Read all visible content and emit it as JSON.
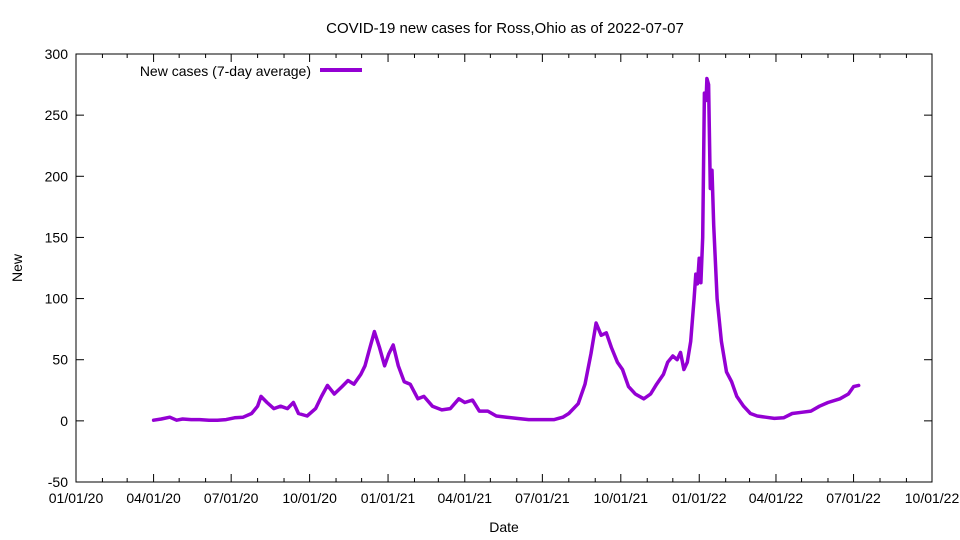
{
  "chart_data": {
    "type": "line",
    "title": "COVID-19 new cases for Ross,Ohio as of 2022-07-07",
    "xlabel": "Date",
    "ylabel": "New",
    "xlim": [
      "2020-01-01",
      "2022-10-01"
    ],
    "ylim": [
      -50,
      300
    ],
    "x_ticks": [
      "01/01/20",
      "04/01/20",
      "07/01/20",
      "10/01/20",
      "01/01/21",
      "04/01/21",
      "07/01/21",
      "10/01/21",
      "01/01/22",
      "04/01/22",
      "07/01/22",
      "10/01/22"
    ],
    "x_tick_dates": [
      "2020-01-01",
      "2020-04-01",
      "2020-07-01",
      "2020-10-01",
      "2021-01-01",
      "2021-04-01",
      "2021-07-01",
      "2021-10-01",
      "2022-01-01",
      "2022-04-01",
      "2022-07-01",
      "2022-10-01"
    ],
    "y_ticks": [
      "-50",
      "0",
      "50",
      "100",
      "150",
      "200",
      "250",
      "300"
    ],
    "y_tick_values": [
      -50,
      0,
      50,
      100,
      150,
      200,
      250,
      300
    ],
    "grid": false,
    "legend_position": "top-left",
    "series": [
      {
        "name": "New cases (7-day average)",
        "color": "#9400d3",
        "points": [
          [
            "2020-04-01",
            0.5
          ],
          [
            "2020-04-10",
            1.5
          ],
          [
            "2020-04-20",
            3
          ],
          [
            "2020-04-28",
            0.5
          ],
          [
            "2020-05-05",
            1.5
          ],
          [
            "2020-05-15",
            1
          ],
          [
            "2020-05-25",
            1
          ],
          [
            "2020-06-05",
            0.5
          ],
          [
            "2020-06-15",
            0.5
          ],
          [
            "2020-06-25",
            1
          ],
          [
            "2020-07-05",
            2.5
          ],
          [
            "2020-07-15",
            3
          ],
          [
            "2020-07-25",
            6
          ],
          [
            "2020-08-01",
            12
          ],
          [
            "2020-08-05",
            20
          ],
          [
            "2020-08-12",
            15
          ],
          [
            "2020-08-20",
            10
          ],
          [
            "2020-08-28",
            12
          ],
          [
            "2020-09-05",
            10
          ],
          [
            "2020-09-12",
            15
          ],
          [
            "2020-09-18",
            6
          ],
          [
            "2020-09-28",
            4
          ],
          [
            "2020-10-08",
            10
          ],
          [
            "2020-10-15",
            20
          ],
          [
            "2020-10-22",
            29
          ],
          [
            "2020-10-30",
            22
          ],
          [
            "2020-11-08",
            28
          ],
          [
            "2020-11-15",
            33
          ],
          [
            "2020-11-22",
            30
          ],
          [
            "2020-11-30",
            38
          ],
          [
            "2020-12-05",
            45
          ],
          [
            "2020-12-10",
            58
          ],
          [
            "2020-12-16",
            73
          ],
          [
            "2020-12-22",
            60
          ],
          [
            "2020-12-28",
            45
          ],
          [
            "2021-01-02",
            55
          ],
          [
            "2021-01-07",
            62
          ],
          [
            "2021-01-13",
            45
          ],
          [
            "2021-01-20",
            32
          ],
          [
            "2021-01-27",
            30
          ],
          [
            "2021-02-05",
            18
          ],
          [
            "2021-02-12",
            20
          ],
          [
            "2021-02-22",
            12
          ],
          [
            "2021-03-05",
            9
          ],
          [
            "2021-03-15",
            10
          ],
          [
            "2021-03-25",
            18
          ],
          [
            "2021-04-01",
            15
          ],
          [
            "2021-04-10",
            17
          ],
          [
            "2021-04-18",
            8
          ],
          [
            "2021-04-28",
            8
          ],
          [
            "2021-05-08",
            4
          ],
          [
            "2021-05-20",
            3
          ],
          [
            "2021-06-01",
            2
          ],
          [
            "2021-06-15",
            1
          ],
          [
            "2021-07-01",
            1
          ],
          [
            "2021-07-15",
            1
          ],
          [
            "2021-07-25",
            3
          ],
          [
            "2021-08-01",
            6
          ],
          [
            "2021-08-12",
            14
          ],
          [
            "2021-08-20",
            30
          ],
          [
            "2021-08-27",
            55
          ],
          [
            "2021-09-02",
            80
          ],
          [
            "2021-09-08",
            70
          ],
          [
            "2021-09-14",
            72
          ],
          [
            "2021-09-20",
            60
          ],
          [
            "2021-09-27",
            48
          ],
          [
            "2021-10-03",
            42
          ],
          [
            "2021-10-10",
            28
          ],
          [
            "2021-10-18",
            22
          ],
          [
            "2021-10-28",
            18
          ],
          [
            "2021-11-05",
            22
          ],
          [
            "2021-11-12",
            30
          ],
          [
            "2021-11-20",
            38
          ],
          [
            "2021-11-25",
            48
          ],
          [
            "2021-12-01",
            53
          ],
          [
            "2021-12-06",
            50
          ],
          [
            "2021-12-10",
            56
          ],
          [
            "2021-12-14",
            42
          ],
          [
            "2021-12-18",
            48
          ],
          [
            "2021-12-22",
            65
          ],
          [
            "2021-12-26",
            100
          ],
          [
            "2021-12-28",
            120
          ],
          [
            "2021-12-30",
            112
          ],
          [
            "2022-01-01",
            133
          ],
          [
            "2022-01-03",
            113
          ],
          [
            "2022-01-05",
            150
          ],
          [
            "2022-01-07",
            268
          ],
          [
            "2022-01-09",
            262
          ],
          [
            "2022-01-10",
            280
          ],
          [
            "2022-01-12",
            275
          ],
          [
            "2022-01-14",
            190
          ],
          [
            "2022-01-16",
            205
          ],
          [
            "2022-01-18",
            160
          ],
          [
            "2022-01-22",
            100
          ],
          [
            "2022-01-27",
            65
          ],
          [
            "2022-02-02",
            40
          ],
          [
            "2022-02-08",
            32
          ],
          [
            "2022-02-14",
            20
          ],
          [
            "2022-02-22",
            12
          ],
          [
            "2022-03-02",
            6
          ],
          [
            "2022-03-10",
            4
          ],
          [
            "2022-03-20",
            3
          ],
          [
            "2022-03-30",
            2
          ],
          [
            "2022-04-10",
            2.5
          ],
          [
            "2022-04-20",
            6
          ],
          [
            "2022-05-01",
            7
          ],
          [
            "2022-05-12",
            8
          ],
          [
            "2022-05-22",
            12
          ],
          [
            "2022-06-01",
            15
          ],
          [
            "2022-06-15",
            18
          ],
          [
            "2022-06-25",
            22
          ],
          [
            "2022-07-01",
            28
          ],
          [
            "2022-07-07",
            29
          ]
        ]
      }
    ]
  }
}
